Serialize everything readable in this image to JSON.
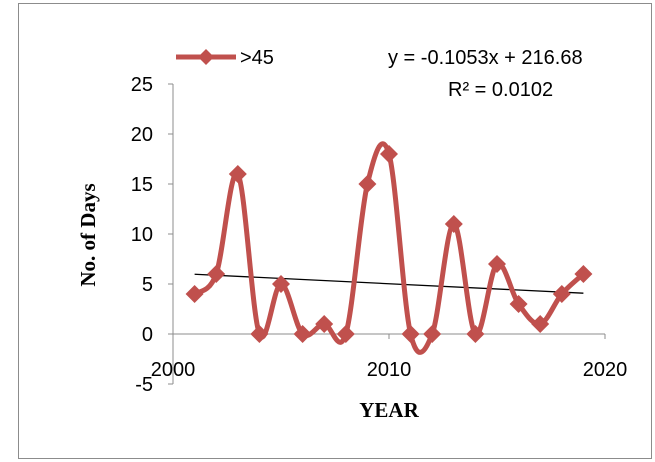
{
  "chart_data": {
    "type": "line",
    "xlabel": "YEAR",
    "ylabel": "No. of Days",
    "xlim": [
      2000,
      2020
    ],
    "ylim": [
      -5,
      25
    ],
    "x_ticks": [
      2000,
      2010,
      2020
    ],
    "y_ticks": [
      -5,
      0,
      5,
      10,
      15,
      20,
      25
    ],
    "grid": false,
    "legend_position": "top-left",
    "series": [
      {
        "name": ">45",
        "color": "#c0504d",
        "marker": "diamond",
        "smooth": true,
        "x": [
          2001,
          2002,
          2003,
          2004,
          2005,
          2006,
          2007,
          2008,
          2009,
          2010,
          2011,
          2012,
          2013,
          2014,
          2015,
          2016,
          2017,
          2018,
          2019
        ],
        "y": [
          4,
          6,
          16,
          0,
          5,
          0,
          1,
          0,
          15,
          18,
          0,
          0,
          11,
          0,
          7,
          3,
          1,
          4,
          6
        ]
      }
    ],
    "trendline": {
      "type": "linear",
      "slope": -0.1053,
      "intercept": 216.68,
      "x_range": [
        2001,
        2019
      ],
      "color": "#000000",
      "equation": "y = -0.1053x + 216.68",
      "r_squared": "R² = 0.0102"
    }
  }
}
